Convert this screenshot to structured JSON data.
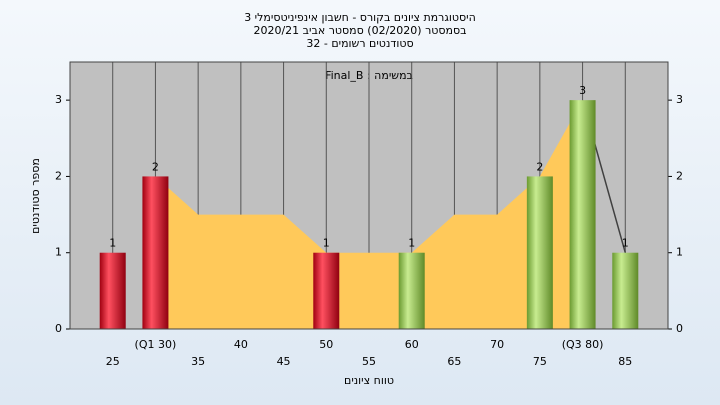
{
  "chart_data": {
    "type": "bar",
    "title": [
      "היסטוגרמת ציונים בקורס - חשבון אינפיניטסימלי 3",
      "בסמסטר  (02/2020)  סמסטר אביב 2020/21",
      "סטודנטים רשומים - 32"
    ],
    "annotation": "Final_B : במשימה",
    "x_label": "טווח ציונים",
    "y_label": "מספר סטודנטים",
    "x": [
      25,
      30,
      50,
      60,
      75,
      80,
      85
    ],
    "values": [
      1,
      2,
      1,
      1,
      2,
      3,
      1
    ],
    "colors": [
      "red",
      "red",
      "red",
      "green",
      "green",
      "green",
      "green"
    ],
    "area": {
      "color": "#ffc95a",
      "x": [
        30,
        35,
        45,
        50,
        60,
        65,
        70,
        75,
        80
      ],
      "values": [
        2,
        1.5,
        1.5,
        1,
        1,
        1.5,
        1.5,
        2,
        3
      ]
    },
    "line": {
      "color": "#404040",
      "x": [
        80,
        85
      ],
      "values": [
        3,
        1
      ]
    },
    "xlim": [
      20,
      90
    ],
    "xticks": [
      25,
      {
        "value": 30,
        "label": "(Q1 30)"
      },
      35,
      40,
      45,
      50,
      55,
      60,
      65,
      70,
      75,
      {
        "value": 80,
        "label": "(Q3 80)"
      },
      85
    ],
    "ylim": [
      0,
      3.5
    ],
    "yticks": [
      0,
      1,
      2,
      3
    ],
    "grid": true
  }
}
